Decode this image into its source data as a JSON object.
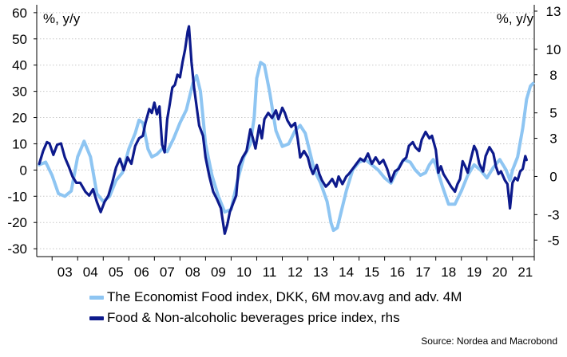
{
  "chart_data": {
    "type": "line",
    "left_unit": "%, y/y",
    "right_unit": "%, y/y",
    "left_axis": {
      "min": -33,
      "max": 63,
      "ticks": [
        60,
        50,
        40,
        30,
        20,
        10,
        0,
        -10,
        -20,
        -30
      ]
    },
    "right_axis": {
      "min": -6.3,
      "max": 13.5,
      "ticks": [
        13,
        10,
        8,
        5,
        3,
        0,
        -3,
        -5
      ]
    },
    "x_axis": {
      "min": 2002.4,
      "max": 2021.85,
      "ticks": [
        2003,
        2004,
        2005,
        2006,
        2007,
        2008,
        2009,
        2010,
        2011,
        2012,
        2013,
        2014,
        2015,
        2016,
        2017,
        2018,
        2019,
        2020,
        2021
      ],
      "tick_labels": [
        "03",
        "04",
        "05",
        "06",
        "07",
        "08",
        "09",
        "10",
        "11",
        "12",
        "13",
        "14",
        "15",
        "16",
        "17",
        "18",
        "19",
        "20",
        "21"
      ]
    },
    "series": [
      {
        "name": "The Economist Food index, DKK, 6M mov.avg and adv. 4M",
        "axis": "left",
        "color": "#8ec5f2",
        "points": [
          [
            2002.5,
            2
          ],
          [
            2002.75,
            3
          ],
          [
            2003.0,
            -2
          ],
          [
            2003.25,
            -9
          ],
          [
            2003.5,
            -10
          ],
          [
            2003.75,
            -8
          ],
          [
            2004.0,
            5
          ],
          [
            2004.25,
            11
          ],
          [
            2004.5,
            5
          ],
          [
            2004.75,
            -9
          ],
          [
            2005.0,
            -12
          ],
          [
            2005.25,
            -10
          ],
          [
            2005.5,
            -4
          ],
          [
            2005.75,
            -1
          ],
          [
            2006.0,
            8
          ],
          [
            2006.25,
            14
          ],
          [
            2006.4,
            19
          ],
          [
            2006.55,
            18
          ],
          [
            2006.75,
            8
          ],
          [
            2006.9,
            5
          ],
          [
            2007.1,
            6
          ],
          [
            2007.3,
            8
          ],
          [
            2007.5,
            7
          ],
          [
            2007.75,
            12
          ],
          [
            2008.0,
            18
          ],
          [
            2008.25,
            23
          ],
          [
            2008.5,
            33
          ],
          [
            2008.65,
            36
          ],
          [
            2008.8,
            30
          ],
          [
            2009.0,
            10
          ],
          [
            2009.25,
            -2
          ],
          [
            2009.5,
            -10
          ],
          [
            2009.75,
            -16
          ],
          [
            2010.0,
            -15
          ],
          [
            2010.25,
            -4
          ],
          [
            2010.5,
            5
          ],
          [
            2010.75,
            10
          ],
          [
            2010.9,
            20
          ],
          [
            2011.0,
            35
          ],
          [
            2011.15,
            41
          ],
          [
            2011.3,
            40
          ],
          [
            2011.5,
            30
          ],
          [
            2011.75,
            15
          ],
          [
            2012.0,
            9
          ],
          [
            2012.25,
            10
          ],
          [
            2012.5,
            15
          ],
          [
            2012.7,
            17
          ],
          [
            2012.9,
            14
          ],
          [
            2013.0,
            10
          ],
          [
            2013.25,
            0
          ],
          [
            2013.5,
            -5
          ],
          [
            2013.75,
            -12
          ],
          [
            2013.9,
            -20
          ],
          [
            2014.0,
            -23
          ],
          [
            2014.15,
            -22
          ],
          [
            2014.3,
            -16
          ],
          [
            2014.5,
            -8
          ],
          [
            2014.75,
            0
          ],
          [
            2015.0,
            3
          ],
          [
            2015.25,
            4
          ],
          [
            2015.5,
            2
          ],
          [
            2015.75,
            0
          ],
          [
            2016.0,
            -3
          ],
          [
            2016.25,
            -5
          ],
          [
            2016.5,
            0
          ],
          [
            2016.75,
            4
          ],
          [
            2017.0,
            3
          ],
          [
            2017.2,
            0
          ],
          [
            2017.4,
            -2
          ],
          [
            2017.6,
            -1
          ],
          [
            2017.75,
            2
          ],
          [
            2017.9,
            4
          ],
          [
            2018.0,
            2
          ],
          [
            2018.25,
            -6
          ],
          [
            2018.5,
            -13
          ],
          [
            2018.75,
            -13
          ],
          [
            2019.0,
            -8
          ],
          [
            2019.25,
            -2
          ],
          [
            2019.5,
            2
          ],
          [
            2019.75,
            0
          ],
          [
            2020.0,
            -3
          ],
          [
            2020.25,
            1
          ],
          [
            2020.5,
            4
          ],
          [
            2020.75,
            0
          ],
          [
            2020.9,
            -4
          ],
          [
            2021.0,
            0
          ],
          [
            2021.2,
            5
          ],
          [
            2021.4,
            16
          ],
          [
            2021.55,
            27
          ],
          [
            2021.7,
            32
          ],
          [
            2021.8,
            33
          ]
        ]
      },
      {
        "name": "Food & Non-alcoholic beverages price index, rhs",
        "axis": "right",
        "color": "#0d1a8c",
        "points": [
          [
            2002.5,
            1
          ],
          [
            2002.65,
            2
          ],
          [
            2002.8,
            2.7
          ],
          [
            2002.9,
            2.6
          ],
          [
            2003.05,
            1.7
          ],
          [
            2003.2,
            2.5
          ],
          [
            2003.35,
            2.6
          ],
          [
            2003.5,
            1.5
          ],
          [
            2003.65,
            0.8
          ],
          [
            2003.8,
            0
          ],
          [
            2003.95,
            -0.5
          ],
          [
            2004.1,
            -0.5
          ],
          [
            2004.3,
            -1.2
          ],
          [
            2004.45,
            -1.5
          ],
          [
            2004.6,
            -1
          ],
          [
            2004.75,
            -2
          ],
          [
            2004.9,
            -2.8
          ],
          [
            2005.05,
            -2
          ],
          [
            2005.2,
            -1.5
          ],
          [
            2005.35,
            -0.5
          ],
          [
            2005.5,
            0.7
          ],
          [
            2005.65,
            1.4
          ],
          [
            2005.8,
            0.5
          ],
          [
            2005.95,
            1.5
          ],
          [
            2006.1,
            1
          ],
          [
            2006.25,
            2.4
          ],
          [
            2006.4,
            3
          ],
          [
            2006.55,
            3.2
          ],
          [
            2006.65,
            4.2
          ],
          [
            2006.8,
            5.3
          ],
          [
            2006.9,
            5
          ],
          [
            2007.0,
            5.8
          ],
          [
            2007.1,
            4.9
          ],
          [
            2007.2,
            5.5
          ],
          [
            2007.3,
            2.5
          ],
          [
            2007.4,
            1.9
          ],
          [
            2007.5,
            4.5
          ],
          [
            2007.6,
            5.7
          ],
          [
            2007.7,
            7
          ],
          [
            2007.8,
            7.2
          ],
          [
            2007.9,
            8
          ],
          [
            2008.0,
            7.8
          ],
          [
            2008.1,
            9
          ],
          [
            2008.2,
            10
          ],
          [
            2008.3,
            11.4
          ],
          [
            2008.35,
            11.8
          ],
          [
            2008.45,
            9
          ],
          [
            2008.55,
            7
          ],
          [
            2008.65,
            5.5
          ],
          [
            2008.75,
            4
          ],
          [
            2008.9,
            3.2
          ],
          [
            2009.0,
            1.5
          ],
          [
            2009.15,
            0
          ],
          [
            2009.3,
            -1.2
          ],
          [
            2009.45,
            -1.8
          ],
          [
            2009.6,
            -2.5
          ],
          [
            2009.75,
            -4.5
          ],
          [
            2009.85,
            -3.8
          ],
          [
            2009.95,
            -2.8
          ],
          [
            2010.1,
            -2
          ],
          [
            2010.2,
            -1.5
          ],
          [
            2010.3,
            0.8
          ],
          [
            2010.45,
            1.5
          ],
          [
            2010.6,
            2
          ],
          [
            2010.75,
            3.7
          ],
          [
            2010.85,
            3
          ],
          [
            2010.95,
            2.2
          ],
          [
            2011.1,
            4
          ],
          [
            2011.2,
            3
          ],
          [
            2011.3,
            4.5
          ],
          [
            2011.45,
            5
          ],
          [
            2011.6,
            4.6
          ],
          [
            2011.75,
            5.2
          ],
          [
            2011.85,
            4.5
          ],
          [
            2012.0,
            5.4
          ],
          [
            2012.1,
            5
          ],
          [
            2012.2,
            4.4
          ],
          [
            2012.35,
            3.9
          ],
          [
            2012.5,
            4.2
          ],
          [
            2012.6,
            3
          ],
          [
            2012.7,
            1.5
          ],
          [
            2012.85,
            2
          ],
          [
            2013.0,
            1.5
          ],
          [
            2013.1,
            0.7
          ],
          [
            2013.2,
            0.2
          ],
          [
            2013.35,
            0.9
          ],
          [
            2013.45,
            0.2
          ],
          [
            2013.55,
            -0.3
          ],
          [
            2013.7,
            -0.8
          ],
          [
            2013.8,
            -0.6
          ],
          [
            2013.95,
            -0.2
          ],
          [
            2014.1,
            -0.8
          ],
          [
            2014.2,
            0
          ],
          [
            2014.35,
            -0.6
          ],
          [
            2014.5,
            0
          ],
          [
            2014.6,
            0.2
          ],
          [
            2014.75,
            0.6
          ],
          [
            2014.9,
            1
          ],
          [
            2015.05,
            1.4
          ],
          [
            2015.2,
            1.2
          ],
          [
            2015.35,
            1.8
          ],
          [
            2015.5,
            1
          ],
          [
            2015.65,
            1.5
          ],
          [
            2015.8,
            1
          ],
          [
            2015.95,
            1.3
          ],
          [
            2016.1,
            0.6
          ],
          [
            2016.25,
            -0.4
          ],
          [
            2016.4,
            0.4
          ],
          [
            2016.55,
            0.6
          ],
          [
            2016.7,
            1.2
          ],
          [
            2016.85,
            1.5
          ],
          [
            2016.95,
            2.4
          ],
          [
            2017.1,
            2.7
          ],
          [
            2017.2,
            2.3
          ],
          [
            2017.35,
            2
          ],
          [
            2017.45,
            2.9
          ],
          [
            2017.6,
            3.5
          ],
          [
            2017.75,
            3
          ],
          [
            2017.85,
            3.2
          ],
          [
            2018.0,
            2.1
          ],
          [
            2018.1,
            0.3
          ],
          [
            2018.2,
            0.8
          ],
          [
            2018.3,
            0.2
          ],
          [
            2018.45,
            -0.3
          ],
          [
            2018.6,
            -0.8
          ],
          [
            2018.75,
            -1.2
          ],
          [
            2018.85,
            -0.6
          ],
          [
            2018.95,
            -0.2
          ],
          [
            2019.05,
            1.2
          ],
          [
            2019.15,
            0.8
          ],
          [
            2019.25,
            0.3
          ],
          [
            2019.35,
            1.2
          ],
          [
            2019.5,
            2.4
          ],
          [
            2019.6,
            2
          ],
          [
            2019.7,
            1
          ],
          [
            2019.85,
            0.4
          ],
          [
            2019.95,
            1.6
          ],
          [
            2020.1,
            2.3
          ],
          [
            2020.25,
            1.8
          ],
          [
            2020.35,
            0.8
          ],
          [
            2020.45,
            0.2
          ],
          [
            2020.55,
            0.4
          ],
          [
            2020.7,
            -0.3
          ],
          [
            2020.8,
            -0.6
          ],
          [
            2020.9,
            -2.5
          ],
          [
            2021.0,
            -0.5
          ],
          [
            2021.1,
            -0.1
          ],
          [
            2021.2,
            -0.3
          ],
          [
            2021.3,
            0.4
          ],
          [
            2021.4,
            0.6
          ],
          [
            2021.5,
            1.6
          ],
          [
            2021.55,
            1.3
          ]
        ]
      }
    ],
    "source": "Source: Nordea and Macrobond"
  }
}
